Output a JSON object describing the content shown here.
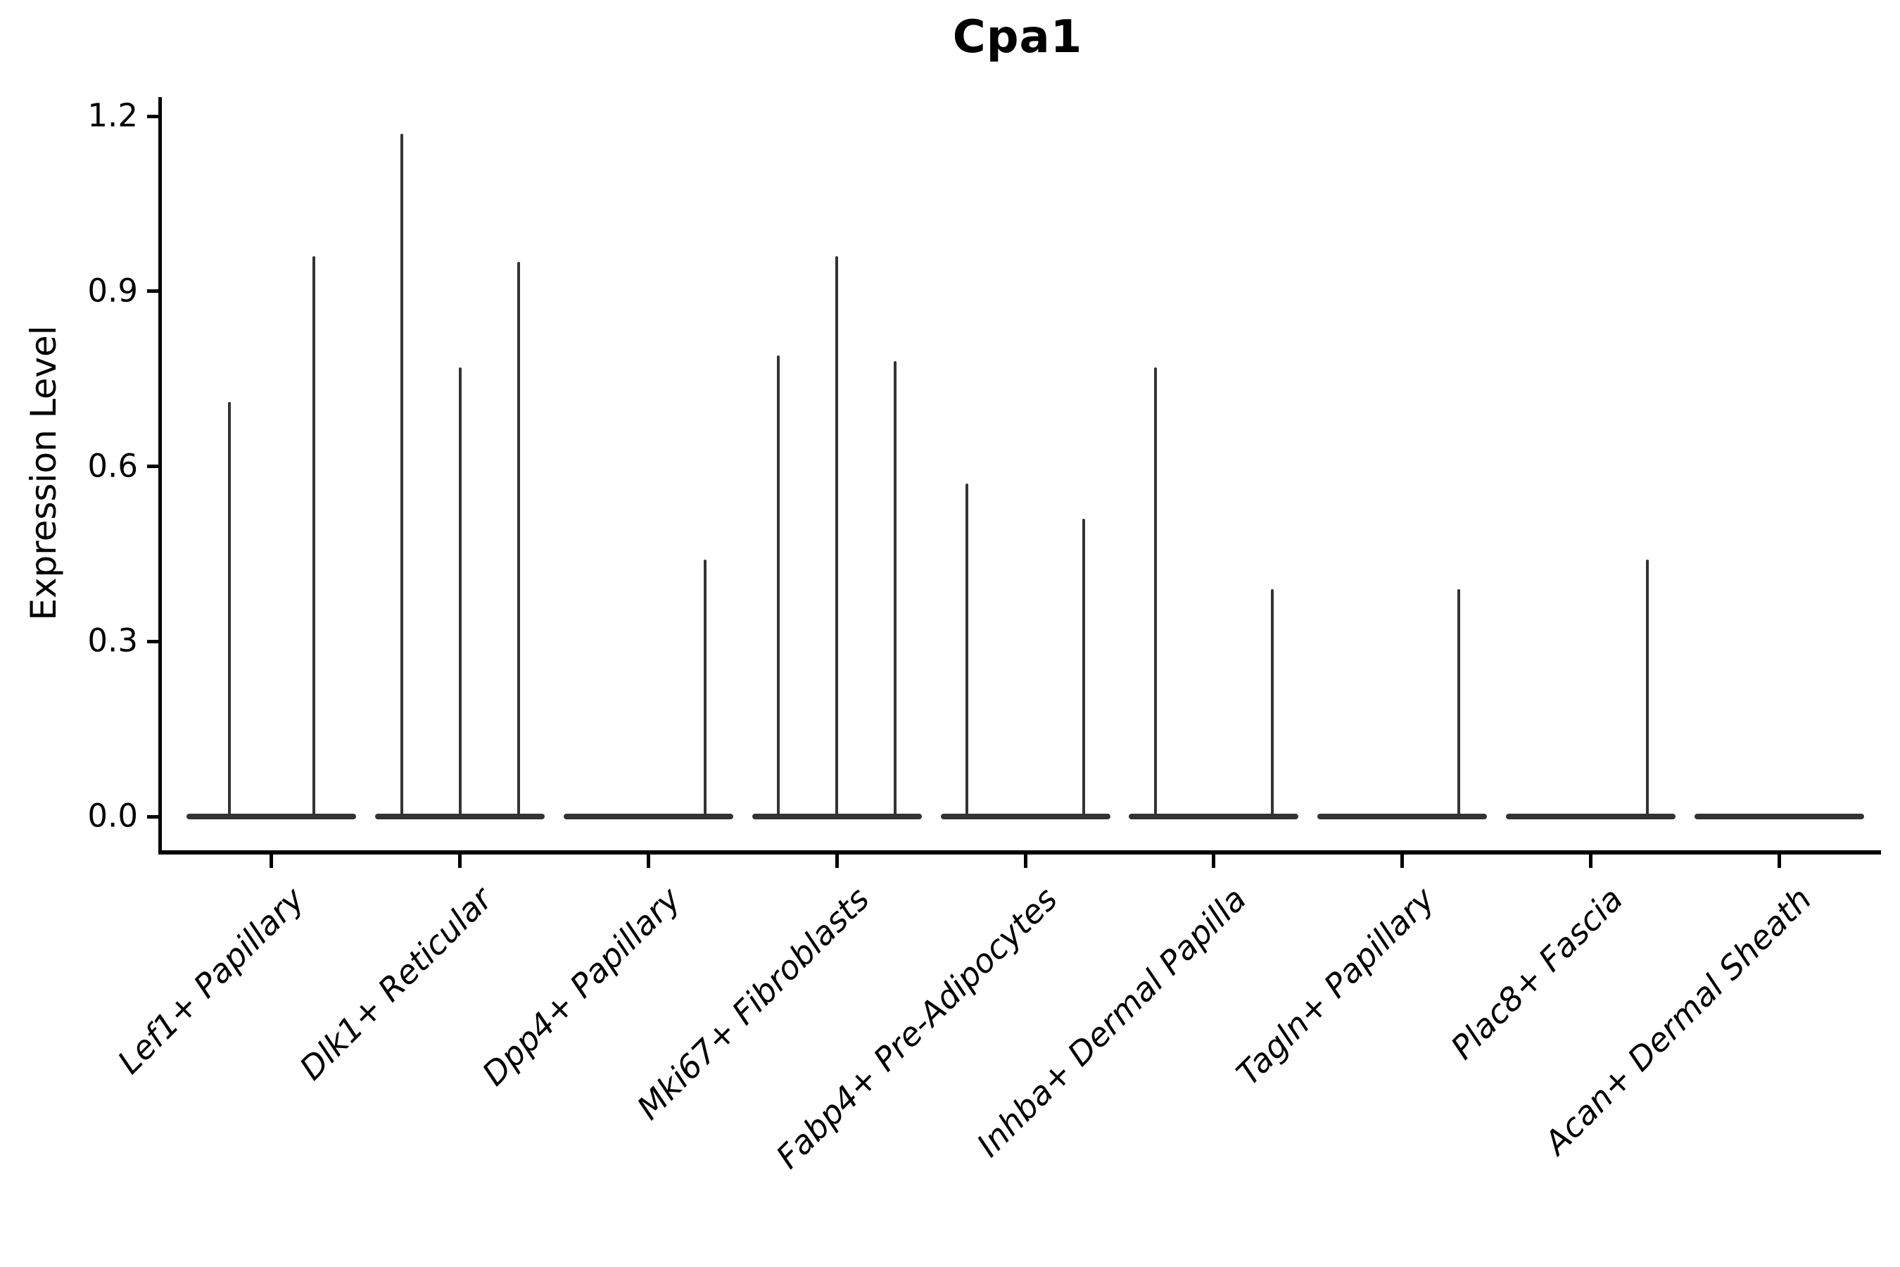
{
  "chart_data": {
    "type": "violin",
    "title": "Cpa1",
    "ylabel": "Expression Level",
    "xlabel": "",
    "ylim": [
      0,
      1.2
    ],
    "yticks": [
      0.0,
      0.3,
      0.6,
      0.9,
      1.2
    ],
    "grid": false,
    "legend": false,
    "categories": [
      "Lef1+ Papillary",
      "Dlk1+ Reticular",
      "Dpp4+ Papillary",
      "Mki67+ Fibroblasts",
      "Fabp4+ Pre-Adipocytes",
      "Inhba+ Dermal Papilla",
      "Tagln+ Papillary",
      "Plac8+ Fascia",
      "Acan+ Dermal Sheath"
    ],
    "violins": [
      {
        "category": "Lef1+ Papillary",
        "base_width_frac": 0.9,
        "spikes": [
          {
            "offset_frac": -0.225,
            "max": 0.71
          },
          {
            "offset_frac": 0.225,
            "max": 0.96
          }
        ]
      },
      {
        "category": "Dlk1+ Reticular",
        "base_width_frac": 0.9,
        "spikes": [
          {
            "offset_frac": -0.31,
            "max": 1.17
          },
          {
            "offset_frac": 0.0,
            "max": 0.77
          },
          {
            "offset_frac": 0.31,
            "max": 0.95
          }
        ]
      },
      {
        "category": "Dpp4+ Papillary",
        "base_width_frac": 0.9,
        "spikes": [
          {
            "offset_frac": 0.3,
            "max": 0.44
          }
        ]
      },
      {
        "category": "Mki67+ Fibroblasts",
        "base_width_frac": 0.9,
        "spikes": [
          {
            "offset_frac": -0.31,
            "max": 0.79
          },
          {
            "offset_frac": 0.0,
            "max": 0.96
          },
          {
            "offset_frac": 0.31,
            "max": 0.78
          }
        ]
      },
      {
        "category": "Fabp4+ Pre-Adipocytes",
        "base_width_frac": 0.9,
        "spikes": [
          {
            "offset_frac": -0.31,
            "max": 0.57
          },
          {
            "offset_frac": 0.31,
            "max": 0.51
          }
        ]
      },
      {
        "category": "Inhba+ Dermal Papilla",
        "base_width_frac": 0.9,
        "spikes": [
          {
            "offset_frac": -0.31,
            "max": 0.77
          },
          {
            "offset_frac": 0.31,
            "max": 0.39
          }
        ]
      },
      {
        "category": "Tagln+ Papillary",
        "base_width_frac": 0.9,
        "spikes": [
          {
            "offset_frac": 0.3,
            "max": 0.39
          }
        ]
      },
      {
        "category": "Plac8+ Fascia",
        "base_width_frac": 0.9,
        "spikes": [
          {
            "offset_frac": 0.3,
            "max": 0.44
          }
        ]
      },
      {
        "category": "Acan+ Dermal Sheath",
        "base_width_frac": 0.9,
        "spikes": []
      }
    ],
    "colors": {
      "violin": "#333333",
      "axis": "#000000",
      "text": "#000000",
      "background": "#ffffff"
    }
  }
}
